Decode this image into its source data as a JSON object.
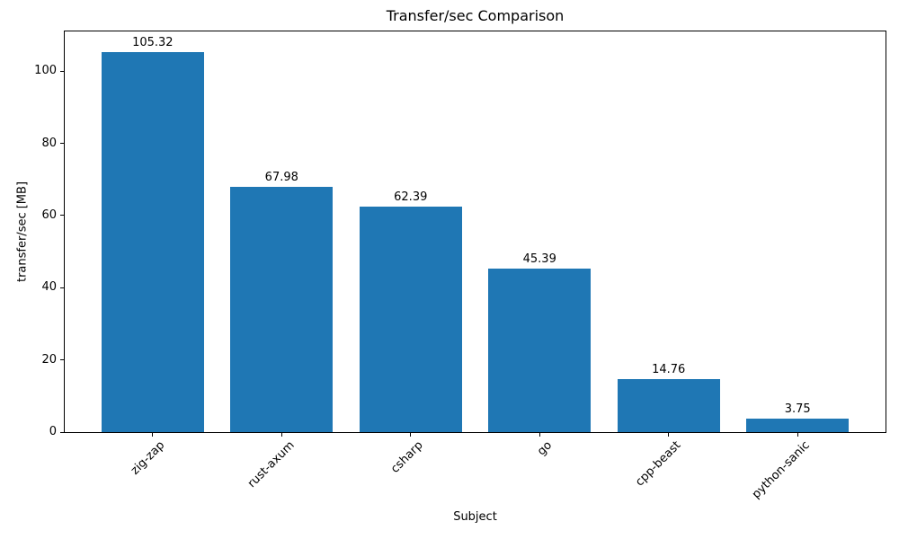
{
  "chart_data": {
    "type": "bar",
    "title": "Transfer/sec Comparison",
    "xlabel": "Subject",
    "ylabel": "transfer/sec [MB]",
    "categories": [
      "zig-zap",
      "rust-axum",
      "csharp",
      "go",
      "cpp-beast",
      "python-sanic"
    ],
    "values": [
      105.32,
      67.98,
      62.39,
      45.39,
      14.76,
      3.75
    ],
    "bar_labels": [
      "105.32",
      "67.98",
      "62.39",
      "45.39",
      "14.76",
      "3.75"
    ],
    "ylim": [
      0,
      111
    ],
    "yticks": [
      0,
      20,
      40,
      60,
      80,
      100
    ],
    "bar_color": "#1f77b4",
    "grid": false,
    "legend": null,
    "xtick_rotation": 45
  }
}
